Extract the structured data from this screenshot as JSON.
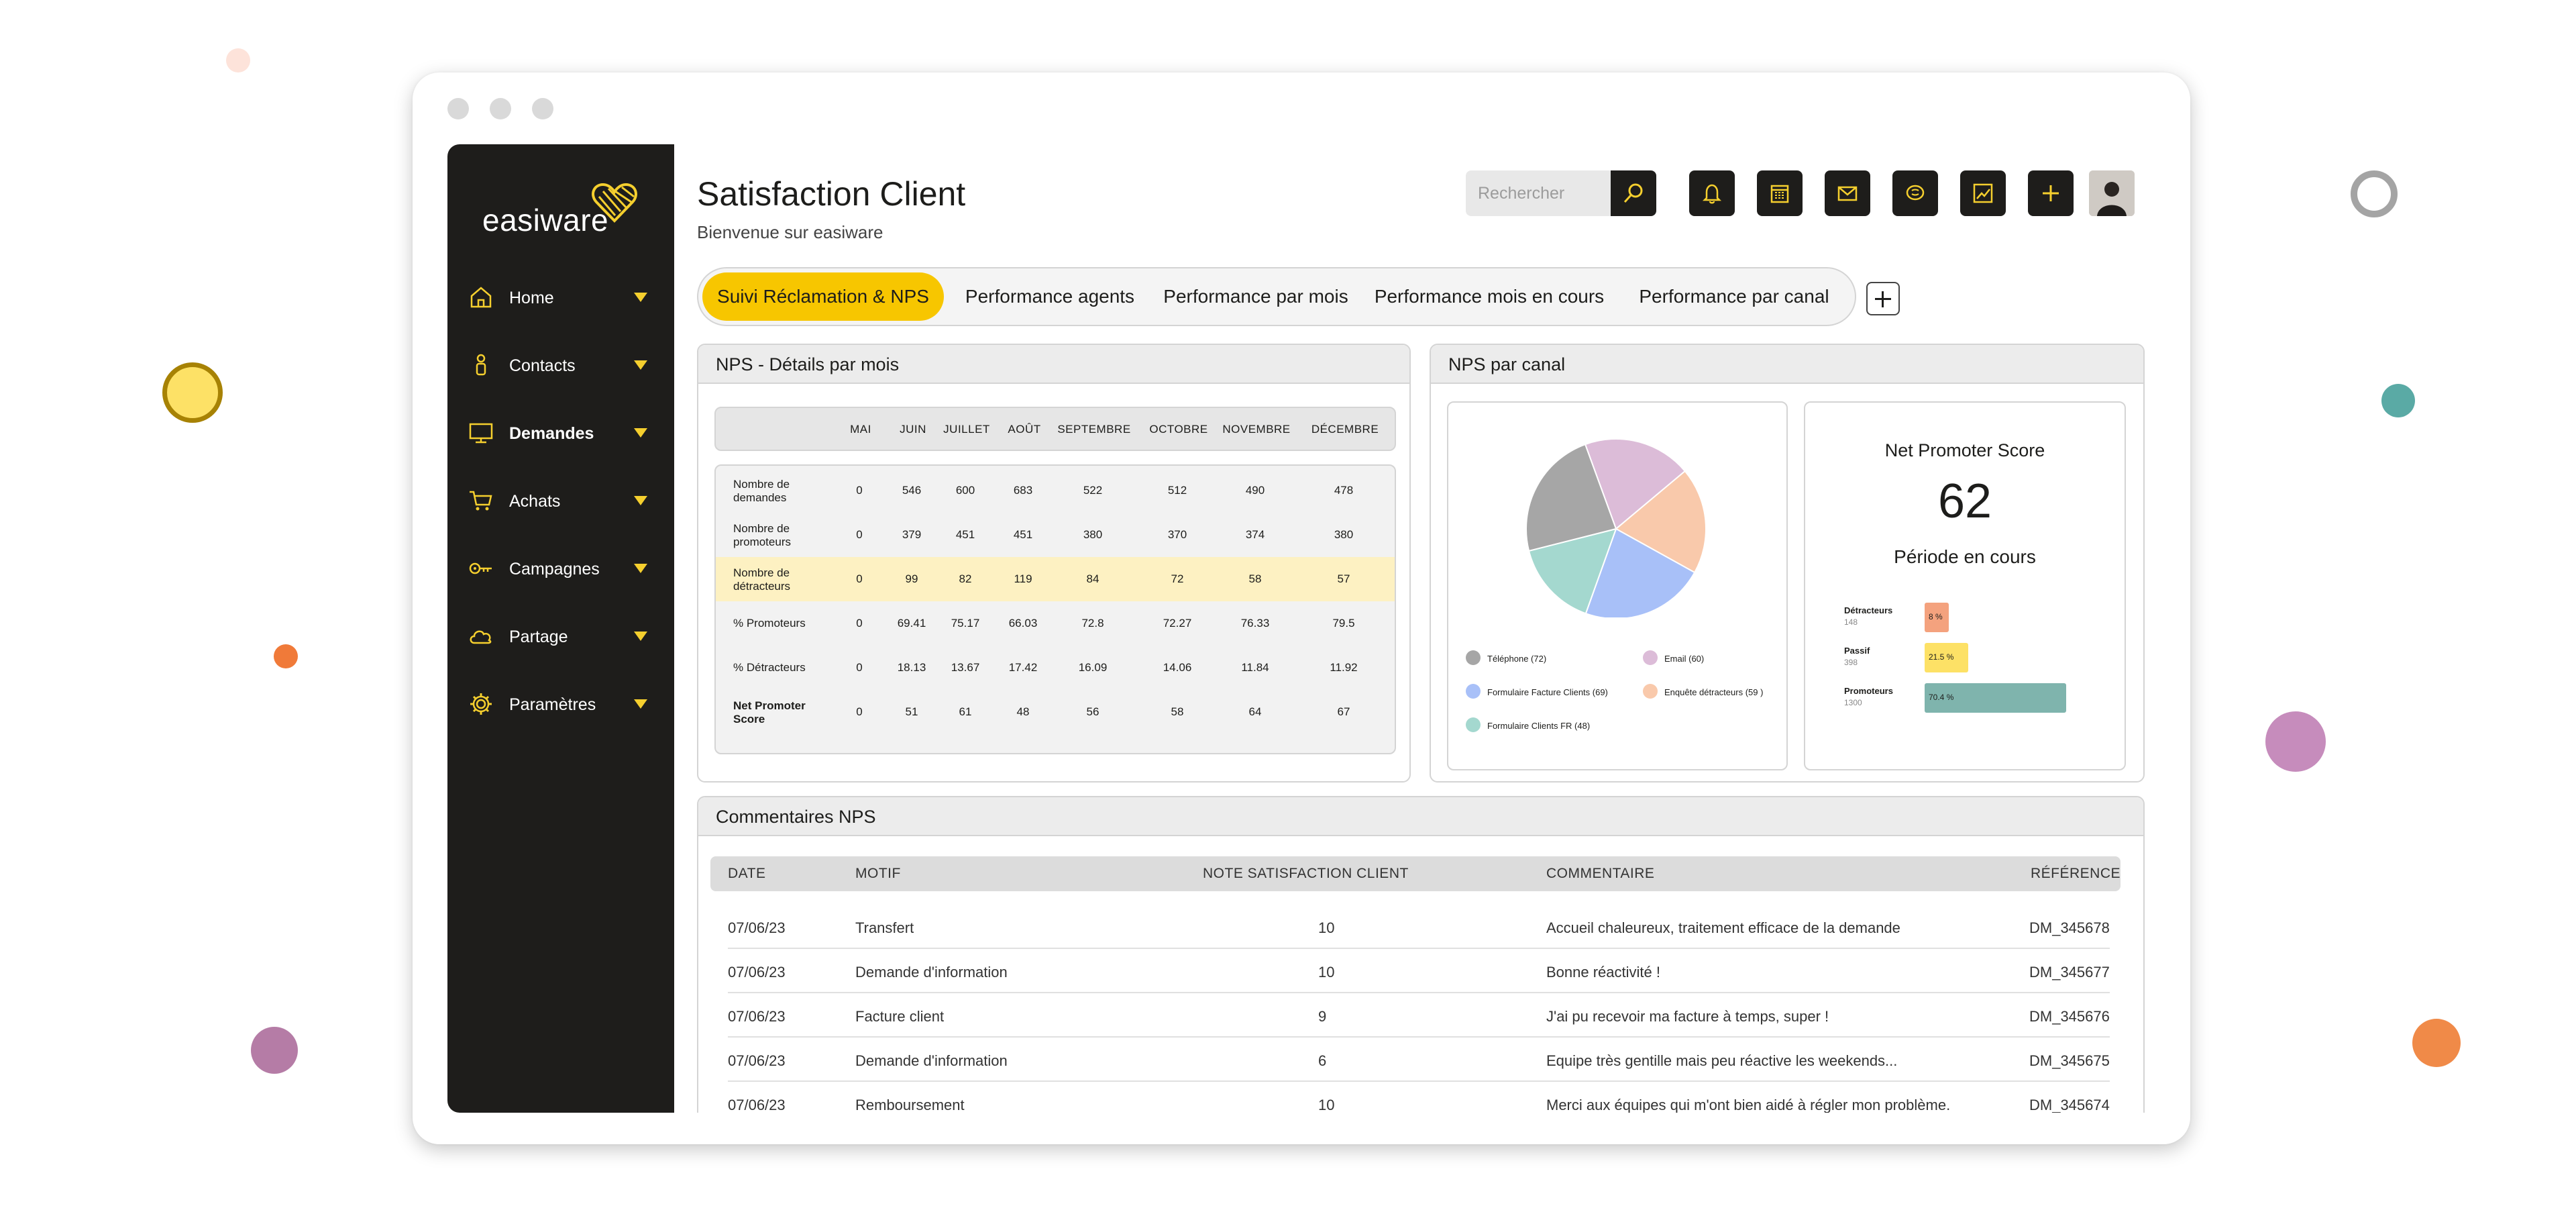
{
  "app": {
    "logo_text": "easiware"
  },
  "header": {
    "title": "Satisfaction Client",
    "subtitle": "Bienvenue sur easiware",
    "search_placeholder": "Rechercher",
    "tool_icons": [
      "bell-icon",
      "calendar-icon",
      "mail-icon",
      "chat-icon",
      "chart-icon",
      "plus-icon"
    ]
  },
  "sidebar": {
    "items": [
      {
        "label": "Home",
        "icon": "home-icon"
      },
      {
        "label": "Contacts",
        "icon": "person-icon"
      },
      {
        "label": "Demandes",
        "icon": "monitor-icon"
      },
      {
        "label": "Achats",
        "icon": "cart-icon"
      },
      {
        "label": "Campagnes",
        "icon": "key-icon"
      },
      {
        "label": "Partage",
        "icon": "cloud-icon"
      },
      {
        "label": "Paramètres",
        "icon": "gear-icon"
      }
    ],
    "active_index": 2
  },
  "tabs": [
    {
      "label": "Suivi Réclamation & NPS"
    },
    {
      "label": "Performance agents"
    },
    {
      "label": "Performance par mois"
    },
    {
      "label": "Performance mois en cours"
    },
    {
      "label": "Performance par canal"
    }
  ],
  "nps_months": {
    "title": "NPS - Détails par mois",
    "months": [
      "MAI",
      "JUIN",
      "JUILLET",
      "AOÛT",
      "SEPTEMBRE",
      "OCTOBRE",
      "NOVEMBRE",
      "DÉCEMBRE"
    ],
    "rows": [
      {
        "label": "Nombre de demandes",
        "values": [
          "0",
          "546",
          "600",
          "683",
          "522",
          "512",
          "490",
          "478"
        ]
      },
      {
        "label": "Nombre de promoteurs",
        "values": [
          "0",
          "379",
          "451",
          "451",
          "380",
          "370",
          "374",
          "380"
        ]
      },
      {
        "label": "Nombre de détracteurs",
        "values": [
          "0",
          "99",
          "82",
          "119",
          "84",
          "72",
          "58",
          "57"
        ],
        "highlight": true
      },
      {
        "label": "% Promoteurs",
        "values": [
          "0",
          "69.41",
          "75.17",
          "66.03",
          "72.8",
          "72.27",
          "76.33",
          "79.5"
        ]
      },
      {
        "label": "% Détracteurs",
        "values": [
          "0",
          "18.13",
          "13.67",
          "17.42",
          "16.09",
          "14.06",
          "11.84",
          "11.92"
        ]
      },
      {
        "label": "Net Promoter Score",
        "values": [
          "0",
          "51",
          "61",
          "48",
          "56",
          "58",
          "64",
          "67"
        ],
        "bold": true
      }
    ]
  },
  "nps_channel": {
    "title": "NPS par canal",
    "legend": [
      {
        "label": "Téléphone (72)",
        "color": "#a6a6a6"
      },
      {
        "label": "Email (60)",
        "color": "#dcbcd8"
      },
      {
        "label": "Formulaire Facture Clients (69)",
        "color": "#a8c0f8"
      },
      {
        "label": "Enquête détracteurs (59 )",
        "color": "#f9c9ab"
      },
      {
        "label": "Formulaire Clients FR (48)",
        "color": "#a4d8cf"
      }
    ],
    "score_title": "Net Promoter Score",
    "score": "62",
    "period": "Période en cours",
    "bars": [
      {
        "label": "Détracteurs",
        "count": "148",
        "value_text": "8 %",
        "value": 8,
        "color": "#f4a27e"
      },
      {
        "label": "Passif",
        "count": "398",
        "value_text": "21.5 %",
        "value": 21.5,
        "color": "#fde166"
      },
      {
        "label": "Promoteurs",
        "count": "1300",
        "value_text": "70.4 %",
        "value": 70.4,
        "color": "#7fb4ad"
      }
    ]
  },
  "chart_data": {
    "type": "pie",
    "categories": [
      "Téléphone",
      "Email",
      "Formulaire Facture Clients",
      "Enquête détracteurs",
      "Formulaire Clients FR"
    ],
    "values": [
      72,
      60,
      69,
      59,
      48
    ],
    "colors": [
      "#a6a6a6",
      "#dcbcd8",
      "#a8c0f8",
      "#f9c9ab",
      "#a4d8cf"
    ]
  },
  "comments": {
    "title": "Commentaires NPS",
    "headers": [
      "DATE",
      "MOTIF",
      "NOTE SATISFACTION CLIENT",
      "COMMENTAIRE",
      "RÉFÉRENCE"
    ],
    "rows": [
      [
        "07/06/23",
        "Transfert",
        "10",
        "Accueil chaleureux, traitement efficace de la demande",
        "DM_345678"
      ],
      [
        "07/06/23",
        "Demande  d'information",
        "10",
        "Bonne réactivité !",
        "DM_345677"
      ],
      [
        "07/06/23",
        "Facture client",
        "9",
        "J'ai pu recevoir ma facture à temps, super !",
        "DM_345676"
      ],
      [
        "07/06/23",
        "Demande  d'information",
        "6",
        "Equipe très gentille mais peu réactive les weekends...",
        "DM_345675"
      ],
      [
        "07/06/23",
        "Remboursement",
        "10",
        "Merci aux équipes qui m'ont bien aidé à régler mon problème.",
        "DM_345674"
      ]
    ]
  }
}
